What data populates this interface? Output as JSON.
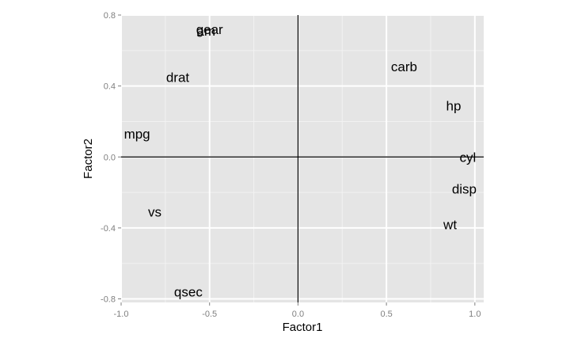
{
  "chart_data": {
    "type": "scatter",
    "title": "",
    "xlabel": "Factor1",
    "ylabel": "Factor2",
    "xlim": [
      -1.0,
      1.05
    ],
    "ylim": [
      -0.82,
      0.8
    ],
    "x_ticks": [
      -1.0,
      -0.5,
      0.0,
      0.5,
      1.0
    ],
    "x_tick_labels": [
      "-1.0",
      "-0.5",
      "0.0",
      "0.5",
      "1.0"
    ],
    "y_ticks": [
      -0.8,
      -0.4,
      0.0,
      0.4,
      0.8
    ],
    "y_tick_labels": [
      "-0.8",
      "-0.4",
      "0.0",
      "0.4",
      "0.8"
    ],
    "grid": true,
    "reference_lines": {
      "x": 0,
      "y": 0
    },
    "points": [
      {
        "label": "am",
        "x": -0.52,
        "y": 0.71
      },
      {
        "label": "gear",
        "x": -0.5,
        "y": 0.72
      },
      {
        "label": "carb",
        "x": 0.6,
        "y": 0.51
      },
      {
        "label": "drat",
        "x": -0.68,
        "y": 0.45
      },
      {
        "label": "hp",
        "x": 0.88,
        "y": 0.29
      },
      {
        "label": "mpg",
        "x": -0.91,
        "y": 0.13
      },
      {
        "label": "cyl",
        "x": 0.96,
        "y": 0.0
      },
      {
        "label": "disp",
        "x": 0.94,
        "y": -0.18
      },
      {
        "label": "vs",
        "x": -0.81,
        "y": -0.31
      },
      {
        "label": "wt",
        "x": 0.86,
        "y": -0.38
      },
      {
        "label": "qsec",
        "x": -0.62,
        "y": -0.76
      }
    ],
    "colors": {
      "panel": "#e5e5e5",
      "grid_major": "#ffffff",
      "grid_minor": "#f2f2f2",
      "text": "#000000",
      "ticks": "#7f7f7f"
    }
  }
}
